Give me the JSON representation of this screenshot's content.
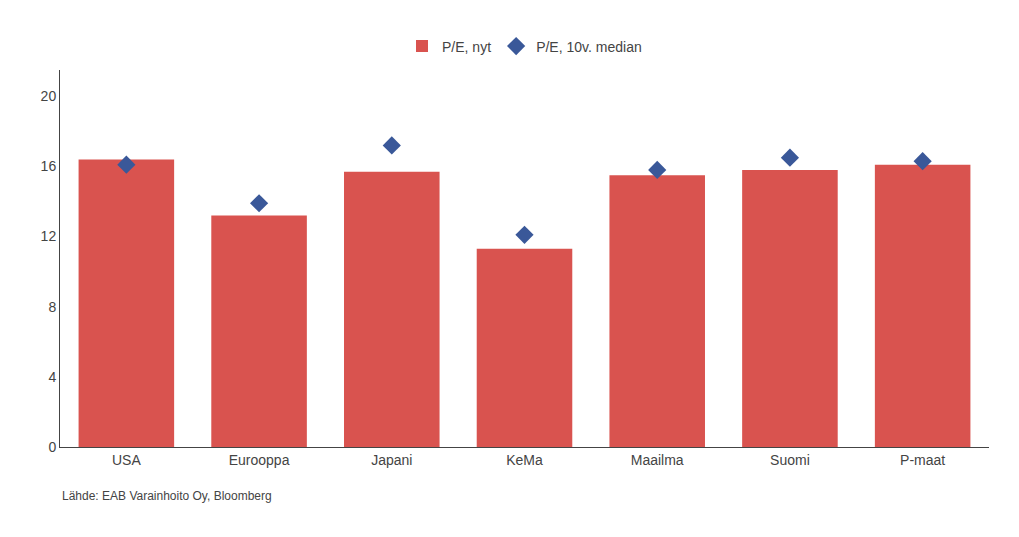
{
  "chart_data": {
    "type": "bar",
    "categories": [
      "USA",
      "Eurooppa",
      "Japani",
      "KeMa",
      "Maailma",
      "Suomi",
      "P-maat"
    ],
    "series": [
      {
        "name": "P/E, nyt",
        "type": "bar",
        "color": "#d9534f",
        "values": [
          16.4,
          13.2,
          15.7,
          11.3,
          15.5,
          15.8,
          16.1
        ]
      },
      {
        "name": "P/E, 10v. median",
        "type": "scatter",
        "marker": "diamond",
        "color": "#3a5899",
        "values": [
          16.1,
          13.9,
          17.2,
          12.1,
          15.8,
          16.5,
          16.3
        ]
      }
    ],
    "ylim": [
      0,
      21.5
    ],
    "yticks": [
      0,
      4,
      8,
      12,
      16,
      20
    ],
    "grid": false,
    "legend": "top",
    "annotations": [
      "Lähde: EAB Varainhoito Oy, Bloomberg"
    ]
  }
}
